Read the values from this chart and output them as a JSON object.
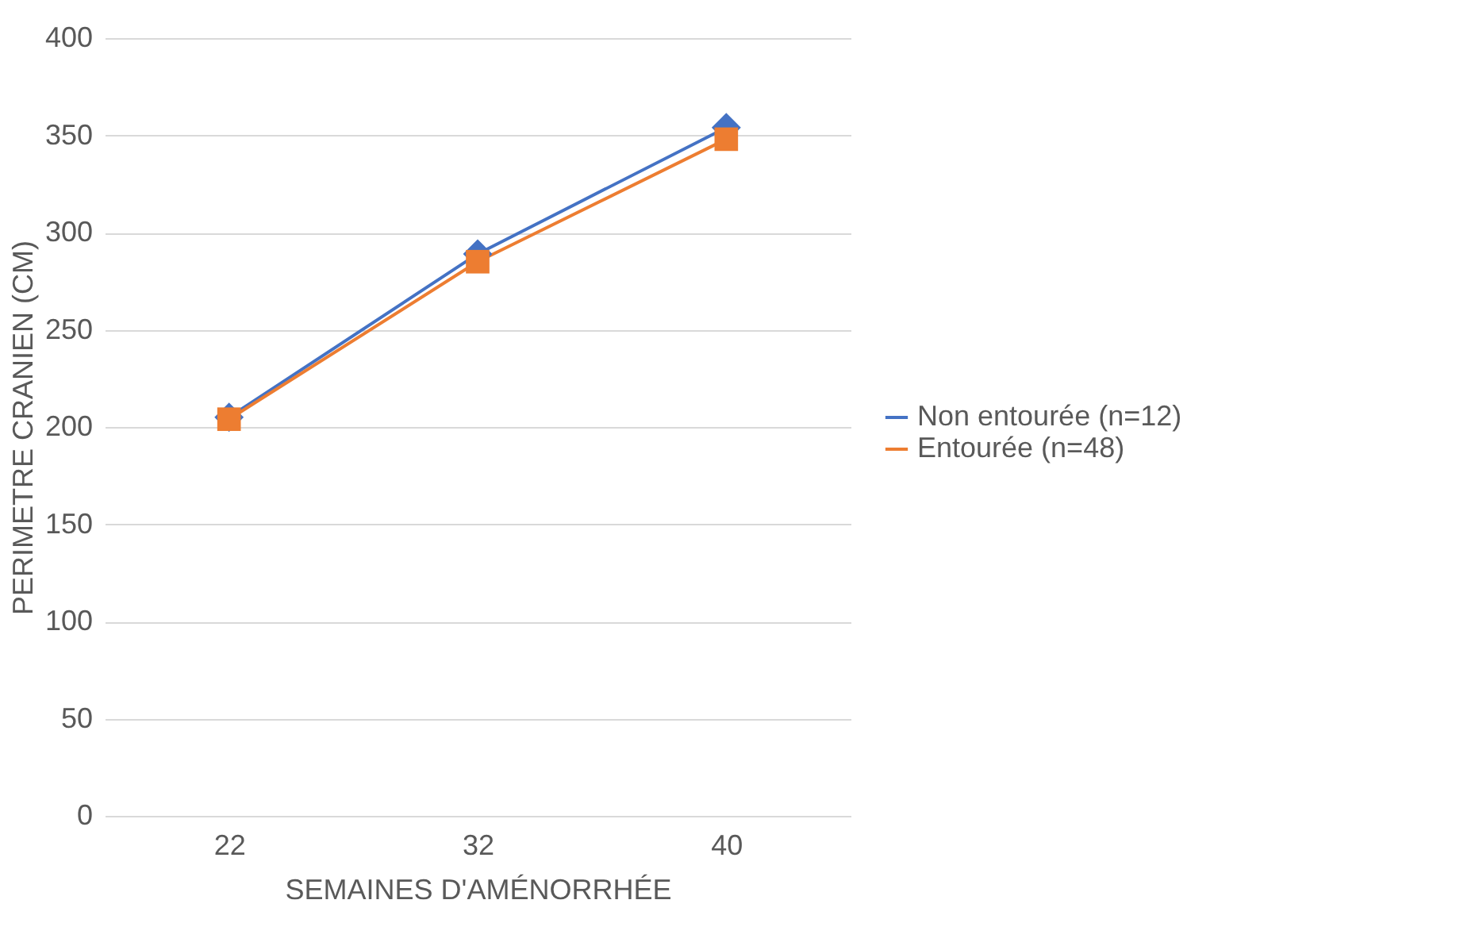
{
  "chart_data": {
    "type": "line",
    "xlabel": "SEMAINES D'AMÉNORRHÉE",
    "ylabel": "PERIMETRE CRANIEN (CM)",
    "categories": [
      "22",
      "32",
      "40"
    ],
    "series": [
      {
        "name": "Non entourée (n=12)",
        "color": "#4472c4",
        "marker": "diamond",
        "values": [
          205,
          289,
          354
        ]
      },
      {
        "name": "Entourée (n=48)",
        "color": "#ed7d31",
        "marker": "square",
        "values": [
          204,
          285,
          348
        ]
      }
    ],
    "ylim": [
      0,
      400
    ],
    "yticks": [
      0,
      50,
      100,
      150,
      200,
      250,
      300,
      350,
      400
    ],
    "grid": "y",
    "legend": "right",
    "line_style": "solid"
  }
}
